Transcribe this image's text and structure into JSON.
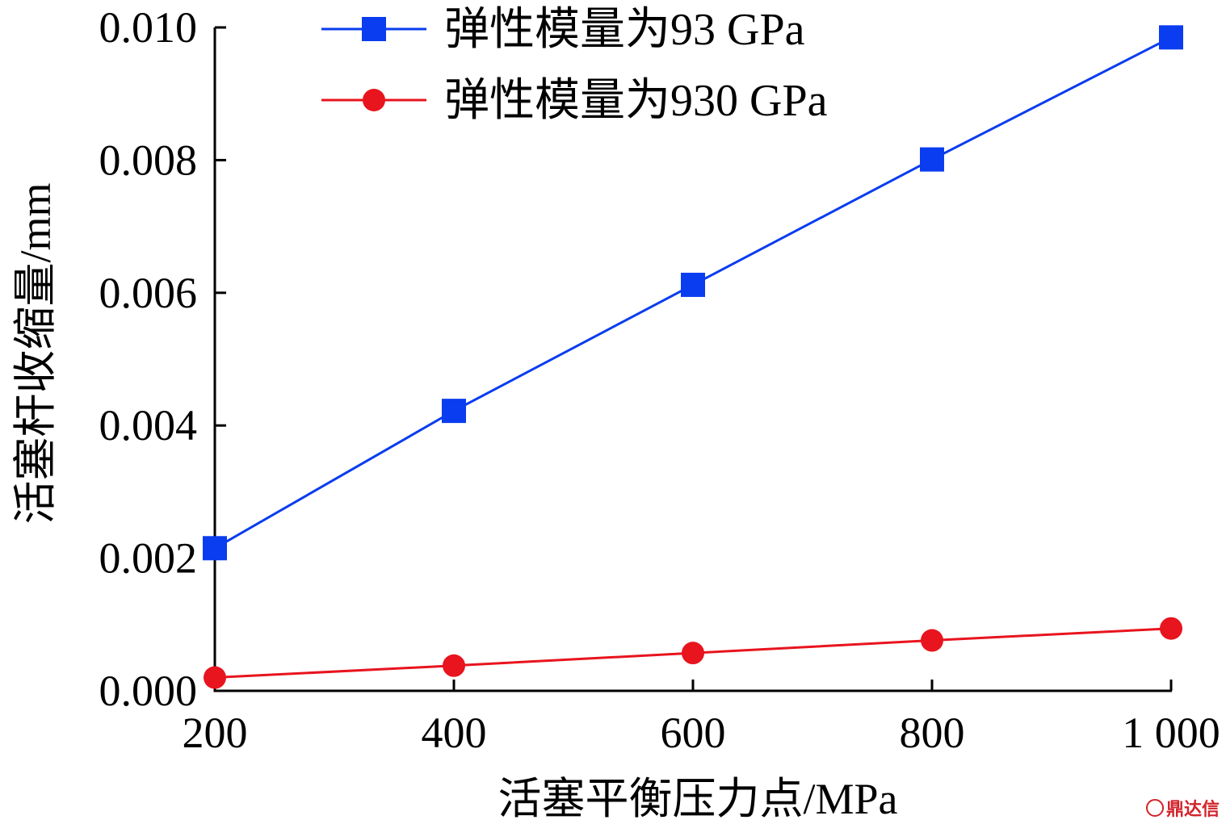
{
  "chart_data": {
    "type": "line",
    "xlabel": "活塞平衡压力点/MPa",
    "ylabel": "活塞杆收缩量/mm",
    "xlim": [
      200,
      1000
    ],
    "ylim": [
      0,
      0.01
    ],
    "x_ticks": [
      200,
      400,
      600,
      800,
      1000
    ],
    "x_tick_labels": [
      "200",
      "400",
      "600",
      "800",
      "1 000"
    ],
    "y_ticks": [
      0,
      0.002,
      0.004,
      0.006,
      0.008,
      0.01
    ],
    "y_tick_labels": [
      "0.000",
      "0.002",
      "0.004",
      "0.006",
      "0.008",
      "0.010"
    ],
    "legend_position": "top-left",
    "grid": false,
    "series": [
      {
        "name": "弹性模量为93 GPa",
        "color": "#0a3cf0",
        "marker": "square",
        "x": [
          200,
          400,
          600,
          800,
          1000
        ],
        "values": [
          0.00215,
          0.00422,
          0.00612,
          0.00801,
          0.00985
        ]
      },
      {
        "name": "弹性模量为930 GPa",
        "color": "#e8141e",
        "marker": "circle",
        "x": [
          200,
          400,
          600,
          800,
          1000
        ],
        "values": [
          0.0002,
          0.00038,
          0.00057,
          0.00076,
          0.00094
        ]
      }
    ]
  },
  "watermark": {
    "text": "鼎达信",
    "icon": "brand-circle-icon",
    "color": "#d2232a"
  }
}
